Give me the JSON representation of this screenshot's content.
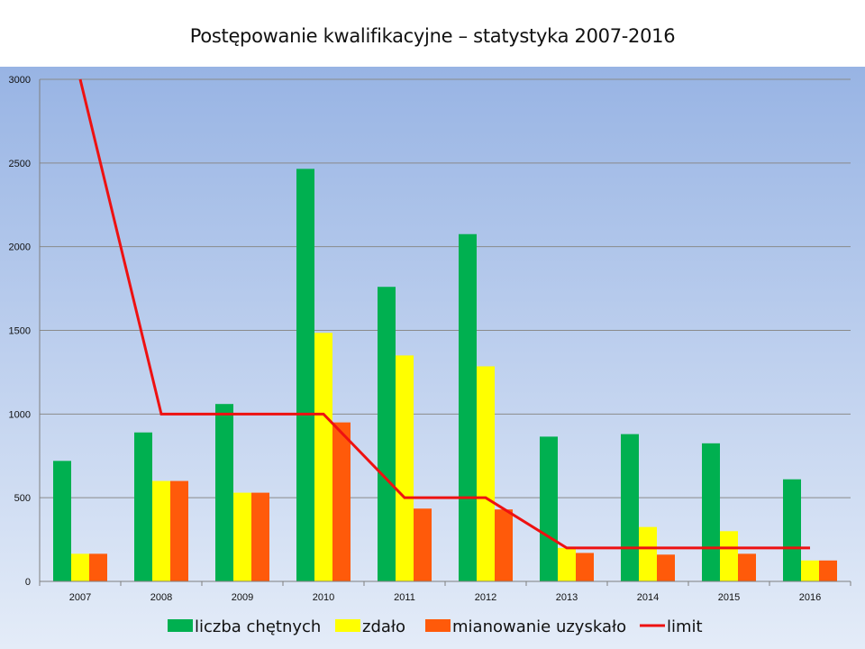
{
  "chart_data": {
    "type": "bar",
    "title": "Postępowanie kwalifikacyjne – statystyka 2007-2016",
    "categories": [
      "2007",
      "2008",
      "2009",
      "2010",
      "2011",
      "2012",
      "2013",
      "2014",
      "2015",
      "2016"
    ],
    "series": [
      {
        "name": "liczba chętnych",
        "type": "bar",
        "color": "#00b050",
        "values": [
          720,
          890,
          1060,
          2465,
          1760,
          2075,
          865,
          880,
          825,
          610
        ]
      },
      {
        "name": "zdało",
        "type": "bar",
        "color": "#ffff00",
        "values": [
          165,
          600,
          530,
          1485,
          1350,
          1285,
          200,
          325,
          300,
          125
        ]
      },
      {
        "name": "mianowanie uzyskało",
        "type": "bar",
        "color": "#ff5a0a",
        "values": [
          165,
          600,
          530,
          950,
          435,
          430,
          170,
          160,
          165,
          125
        ]
      },
      {
        "name": "limit",
        "type": "line",
        "color": "#ee1111",
        "values": [
          3000,
          1000,
          1000,
          1000,
          500,
          500,
          200,
          200,
          200,
          200
        ]
      }
    ],
    "ylim": [
      0,
      3000
    ],
    "yticks": [
      0,
      500,
      1000,
      1500,
      2000,
      2500,
      3000
    ],
    "xlabel": "",
    "ylabel": "",
    "grid": true,
    "legend": "bottom",
    "background_gradient": [
      "#98b4e4",
      "#e4ecf8"
    ]
  }
}
